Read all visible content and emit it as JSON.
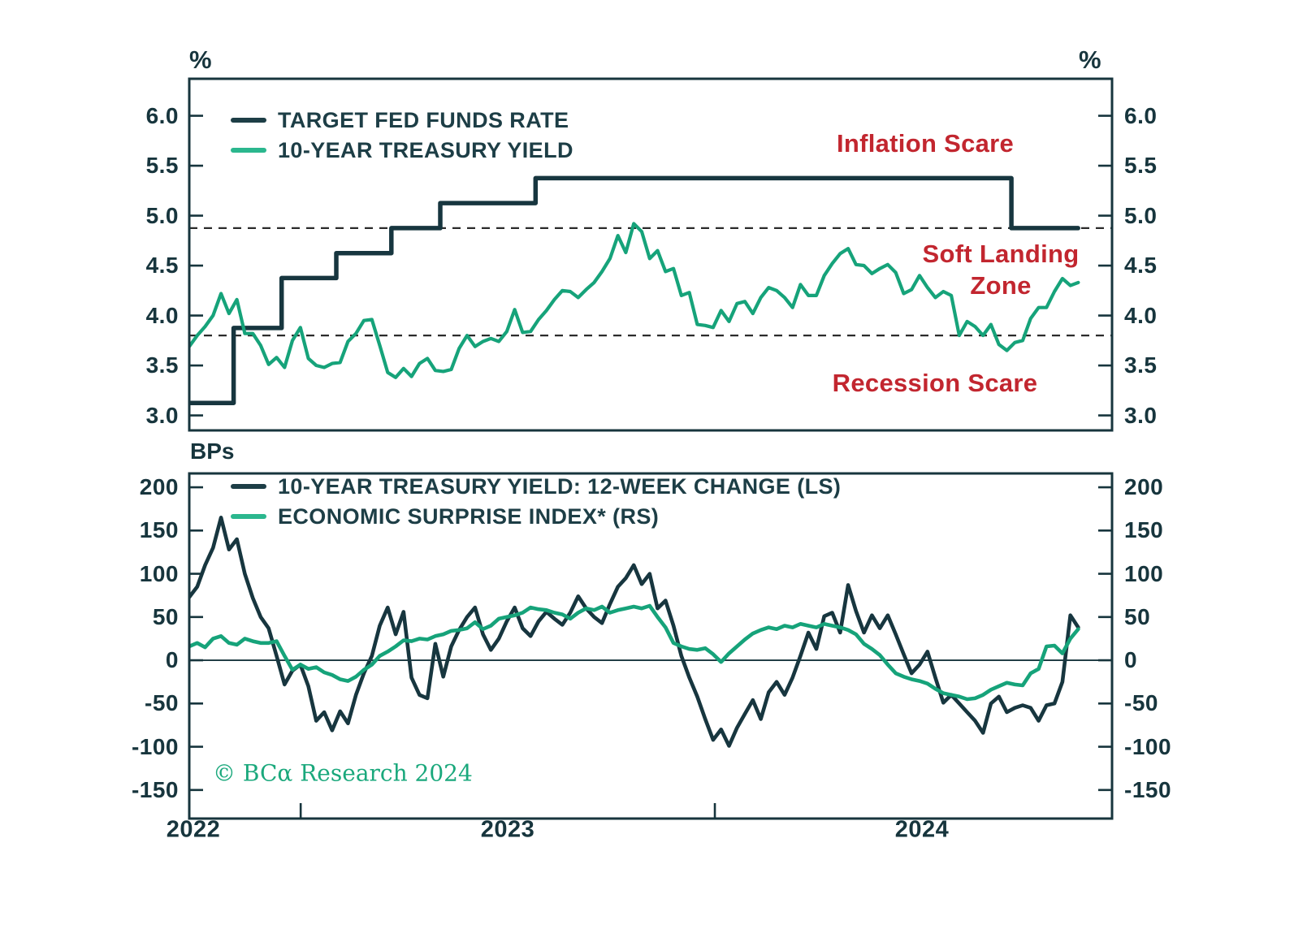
{
  "top_panel": {
    "unit_left": "%",
    "unit_right": "%",
    "legend": [
      {
        "label": "TARGET FED FUNDS RATE",
        "color": "#1d3e46"
      },
      {
        "label": "10-YEAR TREASURY YIELD",
        "color": "#2bb78e"
      }
    ],
    "annotations": [
      {
        "text": "Inflation Scare"
      },
      {
        "line1": "Soft Landing",
        "line2": "Zone"
      },
      {
        "text": "Recession Scare"
      }
    ]
  },
  "bottom_panel": {
    "unit": "BPs",
    "legend": [
      {
        "label": "10-YEAR TREASURY YIELD: 12-WEEK CHANGE (LS)",
        "color": "#1d3e46"
      },
      {
        "label": "ECONOMIC SURPRISE INDEX* (RS)",
        "color": "#2bb78e"
      }
    ]
  },
  "x_axis": {
    "year_labels": [
      "2022",
      "2023",
      "2024"
    ],
    "tick_years": [
      2023,
      2024
    ]
  },
  "footer": {
    "copyright": "© BCα Research 2024"
  },
  "colors": {
    "dark_line": "#17363f",
    "green_line": "#16a37a",
    "legend_green_swatch": "#2bb78e",
    "annotation_red": "#c2262f",
    "dashed_reference": "#2b2b2b",
    "frame": "#17353d",
    "text": "#17353d"
  },
  "chart_data": [
    {
      "type": "line",
      "panel": "top",
      "y_unit": "%",
      "ylim": [
        2.85,
        6.37
      ],
      "yticks": [
        3.0,
        3.5,
        4.0,
        4.5,
        5.0,
        5.5,
        6.0
      ],
      "ytick_labels": [
        "3.0",
        "3.5",
        "4.0",
        "4.5",
        "5.0",
        "5.5",
        "6.0"
      ],
      "reference_dashed_lines": [
        4.875,
        3.8
      ],
      "x_range_years": [
        2022.731,
        2024.959
      ],
      "annotations": [
        "Inflation Scare",
        "Soft Landing Zone",
        "Recession Scare"
      ],
      "series": [
        {
          "name": "TARGET FED FUNDS RATE",
          "draw": "step",
          "color": "#17363f",
          "width": 5.5,
          "steps": [
            [
              2022.731,
              3.125
            ],
            [
              2022.838,
              3.875
            ],
            [
              2022.954,
              4.375
            ],
            [
              2023.086,
              4.625
            ],
            [
              2023.219,
              4.875
            ],
            [
              2023.337,
              5.125
            ],
            [
              2023.567,
              5.375
            ],
            [
              2024.716,
              4.875
            ]
          ],
          "end_year": 2024.877
        },
        {
          "name": "10-YEAR TREASURY YIELD",
          "draw": "line",
          "color": "#16a37a",
          "width": 4.2,
          "x_start_year": 2022.731,
          "x_step_years": 0.019165,
          "values": [
            3.69,
            3.8,
            3.89,
            4.0,
            4.22,
            4.02,
            4.16,
            3.82,
            3.82,
            3.7,
            3.51,
            3.58,
            3.48,
            3.75,
            3.88,
            3.57,
            3.5,
            3.48,
            3.52,
            3.53,
            3.74,
            3.82,
            3.95,
            3.96,
            3.7,
            3.43,
            3.38,
            3.47,
            3.39,
            3.52,
            3.57,
            3.45,
            3.44,
            3.46,
            3.67,
            3.8,
            3.69,
            3.74,
            3.77,
            3.74,
            3.84,
            4.06,
            3.83,
            3.84,
            3.96,
            4.05,
            4.16,
            4.25,
            4.24,
            4.18,
            4.26,
            4.33,
            4.44,
            4.57,
            4.8,
            4.63,
            4.92,
            4.84,
            4.57,
            4.65,
            4.44,
            4.47,
            4.2,
            4.23,
            3.91,
            3.9,
            3.88,
            4.05,
            3.94,
            4.12,
            4.14,
            4.02,
            4.18,
            4.28,
            4.25,
            4.18,
            4.08,
            4.31,
            4.2,
            4.2,
            4.4,
            4.52,
            4.62,
            4.67,
            4.51,
            4.5,
            4.42,
            4.47,
            4.51,
            4.43,
            4.22,
            4.26,
            4.4,
            4.28,
            4.18,
            4.24,
            4.2,
            3.8,
            3.94,
            3.89,
            3.8,
            3.91,
            3.71,
            3.65,
            3.73,
            3.75,
            3.97,
            4.08,
            4.08,
            4.24,
            4.37,
            4.3,
            4.33
          ]
        }
      ]
    },
    {
      "type": "line",
      "panel": "bottom",
      "y_unit": "BPs",
      "ylim": [
        -183,
        216
      ],
      "yticks": [
        -150,
        -100,
        -50,
        0,
        50,
        100,
        150,
        200
      ],
      "ytick_labels": [
        "-150",
        "-100",
        "-50",
        "0",
        "50",
        "100",
        "150",
        "200"
      ],
      "zero_line": true,
      "x_range_years": [
        2022.731,
        2024.959
      ],
      "series": [
        {
          "name": "10-YEAR TREASURY YIELD: 12-WEEK CHANGE (LS)",
          "draw": "line",
          "color": "#17363f",
          "width": 4.6,
          "x_start_year": 2022.731,
          "x_step_years": 0.019165,
          "values": [
            73,
            85,
            110,
            130,
            165,
            128,
            140,
            100,
            72,
            50,
            37,
            5,
            -28,
            -12,
            -5,
            -30,
            -70,
            -60,
            -81,
            -59,
            -73,
            -40,
            -15,
            5,
            40,
            61,
            30,
            56,
            -20,
            -40,
            -44,
            19,
            -19,
            16,
            35,
            50,
            61,
            30,
            12,
            25,
            45,
            61,
            37,
            28,
            45,
            56,
            48,
            41,
            55,
            74,
            60,
            50,
            43,
            65,
            85,
            95,
            110,
            88,
            100,
            60,
            69,
            40,
            5,
            -20,
            -42,
            -68,
            -92,
            -80,
            -99,
            -78,
            -62,
            -46,
            -68,
            -37,
            -25,
            -40,
            -20,
            5,
            32,
            13,
            51,
            55,
            32,
            87,
            57,
            32,
            52,
            37,
            52,
            30,
            7,
            -15,
            -5,
            10,
            -20,
            -49,
            -40,
            -50,
            -60,
            -70,
            -84,
            -50,
            -42,
            -60,
            -55,
            -52,
            -55,
            -70,
            -52,
            -50,
            -25,
            52,
            38
          ]
        },
        {
          "name": "ECONOMIC SURPRISE INDEX* (RS)",
          "draw": "line",
          "color": "#16a37a",
          "width": 4.6,
          "x_start_year": 2022.731,
          "x_step_years": 0.019165,
          "values": [
            16,
            20,
            15,
            25,
            28,
            20,
            18,
            25,
            22,
            20,
            20,
            22,
            5,
            -11,
            -5,
            -10,
            -8,
            -14,
            -17,
            -22,
            -24,
            -19,
            -11,
            -5,
            5,
            10,
            16,
            23,
            22,
            25,
            24,
            28,
            30,
            34,
            35,
            37,
            44,
            36,
            40,
            48,
            50,
            52,
            55,
            61,
            59,
            58,
            55,
            53,
            48,
            55,
            60,
            58,
            62,
            55,
            58,
            60,
            62,
            60,
            63,
            50,
            38,
            20,
            16,
            13,
            12,
            14,
            7,
            -2,
            8,
            16,
            24,
            31,
            35,
            38,
            36,
            40,
            38,
            42,
            40,
            38,
            42,
            40,
            38,
            35,
            30,
            19,
            13,
            6,
            -5,
            -15,
            -19,
            -22,
            -24,
            -27,
            -33,
            -38,
            -40,
            -42,
            -45,
            -44,
            -40,
            -34,
            -30,
            -26,
            -28,
            -29,
            -15,
            -10,
            16,
            17,
            8,
            25,
            36
          ]
        }
      ]
    }
  ]
}
